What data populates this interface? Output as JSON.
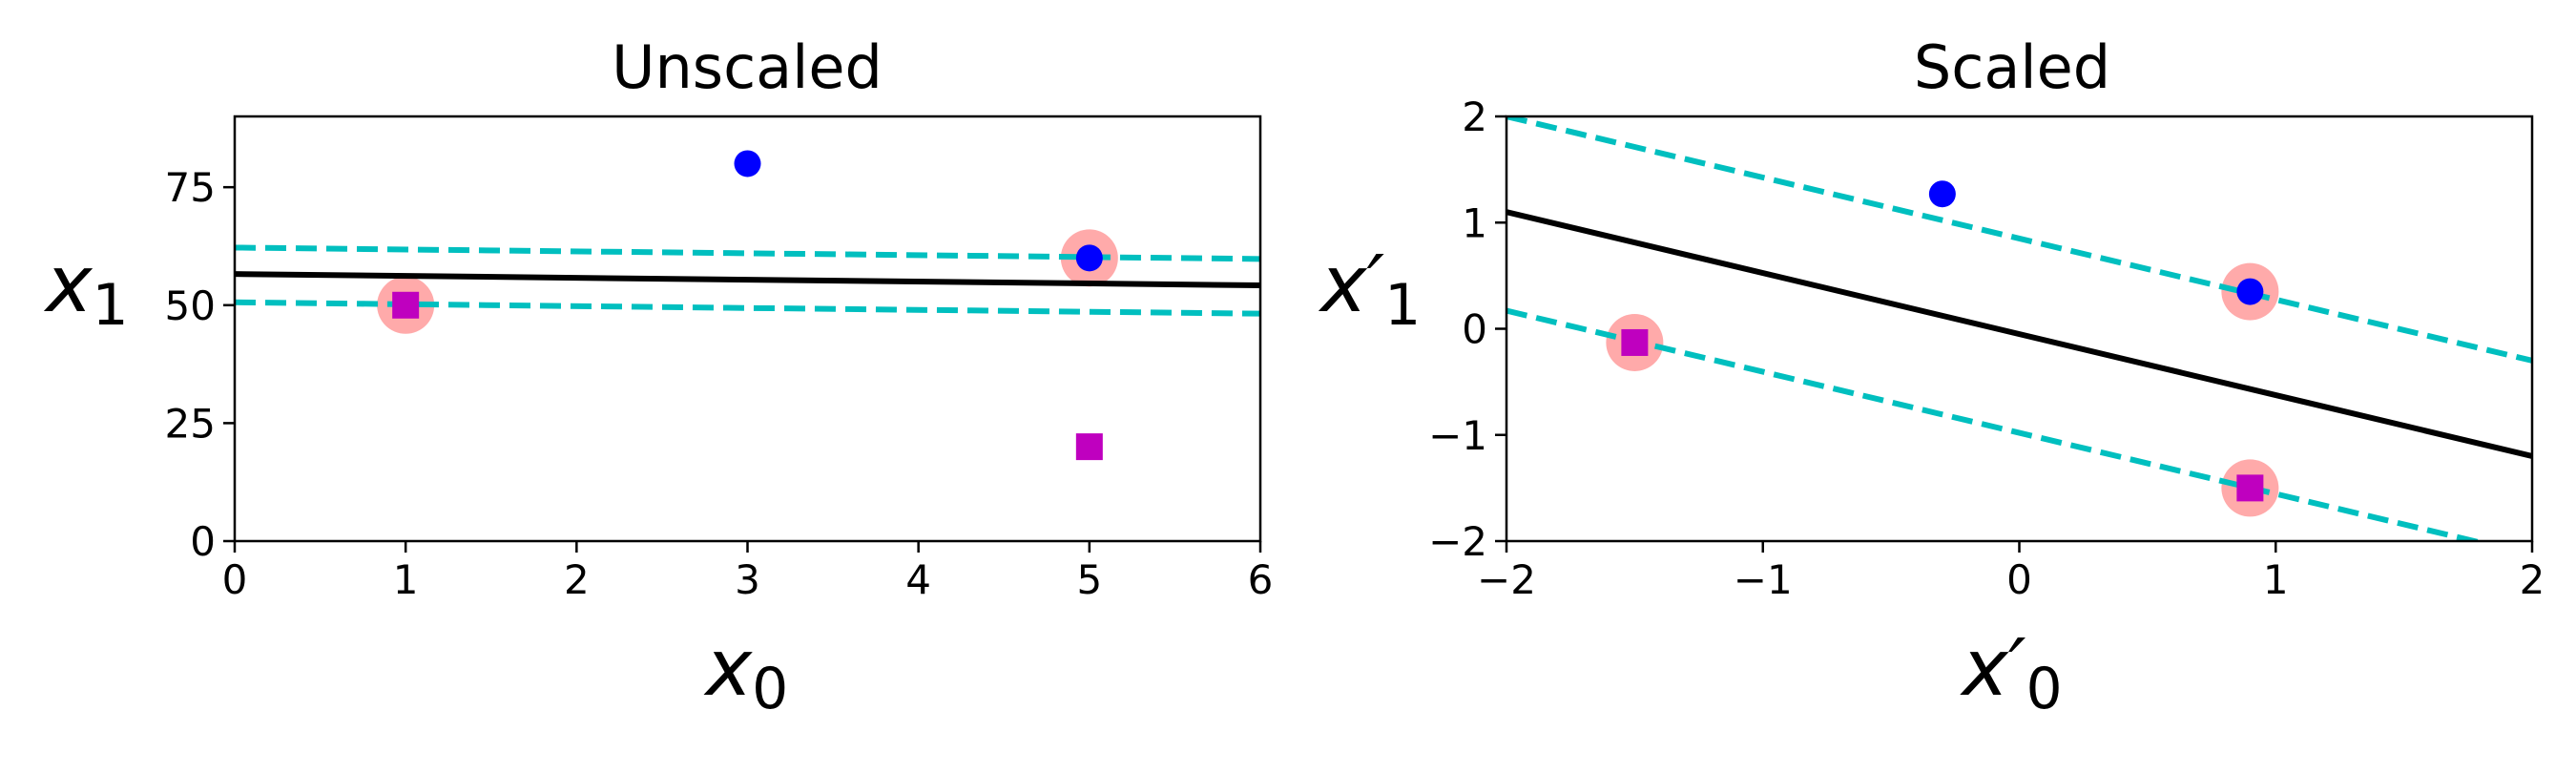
{
  "chart_data": [
    {
      "type": "scatter",
      "title": "Unscaled",
      "xlabel": {
        "main": "x",
        "sub": "0"
      },
      "ylabel": {
        "main": "x",
        "sub": "1"
      },
      "xlim": [
        0,
        6
      ],
      "ylim": [
        0,
        90
      ],
      "xticks": [
        0,
        1,
        2,
        3,
        4,
        5,
        6
      ],
      "xtick_labels": [
        "0",
        "1",
        "2",
        "3",
        "4",
        "5",
        "6"
      ],
      "yticks": [
        0,
        25,
        50,
        75
      ],
      "ytick_labels": [
        "0",
        "25",
        "50",
        "75"
      ],
      "grid": false,
      "points": [
        {
          "x": 1,
          "y": 50,
          "class": "square",
          "support_vector": true
        },
        {
          "x": 5,
          "y": 20,
          "class": "square",
          "support_vector": false
        },
        {
          "x": 3,
          "y": 80,
          "class": "circle",
          "support_vector": false
        },
        {
          "x": 5,
          "y": 60,
          "class": "circle",
          "support_vector": true
        }
      ],
      "lines": [
        {
          "role": "decision-boundary",
          "style": "solid",
          "x": [
            0,
            6
          ],
          "y": [
            56.6,
            54.2
          ]
        },
        {
          "role": "margin-upper",
          "style": "dashed",
          "x": [
            0,
            6
          ],
          "y": [
            62.2,
            59.8
          ]
        },
        {
          "role": "margin-lower",
          "style": "dashed",
          "x": [
            0,
            6
          ],
          "y": [
            50.6,
            48.2
          ]
        }
      ]
    },
    {
      "type": "scatter",
      "title": "Scaled",
      "xlabel": {
        "main": "x′",
        "sub": "0"
      },
      "ylabel": {
        "main": "x′",
        "sub": "1"
      },
      "xlim": [
        -2,
        2
      ],
      "ylim": [
        -2,
        2
      ],
      "xticks": [
        -2,
        -1,
        0,
        1,
        2
      ],
      "xtick_labels": [
        "−2",
        "−1",
        "0",
        "1",
        "2"
      ],
      "yticks": [
        -2,
        -1,
        0,
        1,
        2
      ],
      "ytick_labels": [
        "−2",
        "−1",
        "0",
        "1",
        "2"
      ],
      "grid": false,
      "points": [
        {
          "x": -1.5,
          "y": -0.13,
          "class": "square",
          "support_vector": true
        },
        {
          "x": 0.9,
          "y": -1.5,
          "class": "square",
          "support_vector": true
        },
        {
          "x": -0.3,
          "y": 1.27,
          "class": "circle",
          "support_vector": false
        },
        {
          "x": 0.9,
          "y": 0.35,
          "class": "circle",
          "support_vector": true
        }
      ],
      "lines": [
        {
          "role": "decision-boundary",
          "style": "solid",
          "x": [
            -2,
            2
          ],
          "y": [
            1.1,
            -1.2
          ]
        },
        {
          "role": "margin-upper",
          "style": "dashed",
          "x": [
            -2,
            2
          ],
          "y": [
            2.0,
            -0.3
          ]
        },
        {
          "role": "margin-lower",
          "style": "dashed",
          "x": [
            -2,
            2
          ],
          "y": [
            0.17,
            -2.13
          ]
        }
      ]
    }
  ],
  "colors": {
    "square": "#bf00bf",
    "circle": "#0000ff",
    "support_vector_highlight": "#ffaaaa",
    "margin": "#00bfbf",
    "boundary": "#000000"
  }
}
